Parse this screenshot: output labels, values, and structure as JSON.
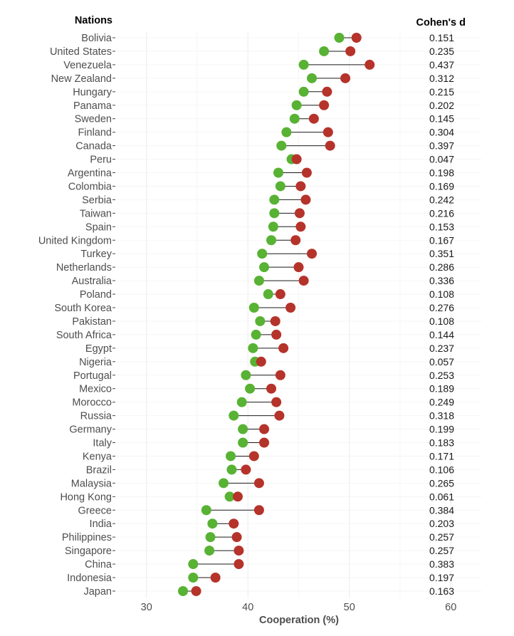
{
  "chart_data": {
    "type": "dumbbell",
    "y_header": "Nations",
    "right_header": "Cohen's d",
    "xlabel": "Cooperation (%)",
    "xlim": [
      27,
      63
    ],
    "x_ticks": [
      30,
      40,
      50,
      60
    ],
    "grid": true,
    "colors": {
      "green": "#58b233",
      "red": "#b5332a",
      "segment": "#1a1a1a"
    },
    "rows": [
      {
        "nation": "Bolivia",
        "green": 49.0,
        "red": 50.7,
        "d": "0.151"
      },
      {
        "nation": "United States",
        "green": 47.5,
        "red": 50.1,
        "d": "0.235"
      },
      {
        "nation": "Venezuela",
        "green": 45.5,
        "red": 52.0,
        "d": "0.437"
      },
      {
        "nation": "New Zealand",
        "green": 46.3,
        "red": 49.6,
        "d": "0.312"
      },
      {
        "nation": "Hungary",
        "green": 45.5,
        "red": 47.8,
        "d": "0.215"
      },
      {
        "nation": "Panama",
        "green": 44.8,
        "red": 47.5,
        "d": "0.202"
      },
      {
        "nation": "Sweden",
        "green": 44.6,
        "red": 46.5,
        "d": "0.145"
      },
      {
        "nation": "Finland",
        "green": 43.8,
        "red": 47.9,
        "d": "0.304"
      },
      {
        "nation": "Canada",
        "green": 43.3,
        "red": 48.1,
        "d": "0.397"
      },
      {
        "nation": "Peru",
        "green": 44.3,
        "red": 44.8,
        "d": "0.047"
      },
      {
        "nation": "Argentina",
        "green": 43.0,
        "red": 45.8,
        "d": "0.198"
      },
      {
        "nation": "Colombia",
        "green": 43.2,
        "red": 45.2,
        "d": "0.169"
      },
      {
        "nation": "Serbia",
        "green": 42.6,
        "red": 45.7,
        "d": "0.242"
      },
      {
        "nation": "Taiwan",
        "green": 42.6,
        "red": 45.1,
        "d": "0.216"
      },
      {
        "nation": "Spain",
        "green": 42.5,
        "red": 45.2,
        "d": "0.153"
      },
      {
        "nation": "United Kingdom",
        "green": 42.3,
        "red": 44.7,
        "d": "0.167"
      },
      {
        "nation": "Turkey",
        "green": 41.4,
        "red": 46.3,
        "d": "0.351"
      },
      {
        "nation": "Netherlands",
        "green": 41.6,
        "red": 45.0,
        "d": "0.286"
      },
      {
        "nation": "Australia",
        "green": 41.1,
        "red": 45.5,
        "d": "0.336"
      },
      {
        "nation": "Poland",
        "green": 42.0,
        "red": 43.2,
        "d": "0.108"
      },
      {
        "nation": "South Korea",
        "green": 40.6,
        "red": 44.2,
        "d": "0.276"
      },
      {
        "nation": "Pakistan",
        "green": 41.2,
        "red": 42.7,
        "d": "0.108"
      },
      {
        "nation": "South Africa",
        "green": 40.8,
        "red": 42.8,
        "d": "0.144"
      },
      {
        "nation": "Egypt",
        "green": 40.5,
        "red": 43.5,
        "d": "0.237"
      },
      {
        "nation": "Nigeria",
        "green": 40.7,
        "red": 41.3,
        "d": "0.057"
      },
      {
        "nation": "Portugal",
        "green": 39.8,
        "red": 43.2,
        "d": "0.253"
      },
      {
        "nation": "Mexico",
        "green": 40.2,
        "red": 42.3,
        "d": "0.189"
      },
      {
        "nation": "Morocco",
        "green": 39.4,
        "red": 42.8,
        "d": "0.249"
      },
      {
        "nation": "Russia",
        "green": 38.6,
        "red": 43.1,
        "d": "0.318"
      },
      {
        "nation": "Germany",
        "green": 39.5,
        "red": 41.6,
        "d": "0.199"
      },
      {
        "nation": "Italy",
        "green": 39.5,
        "red": 41.6,
        "d": "0.183"
      },
      {
        "nation": "Kenya",
        "green": 38.3,
        "red": 40.6,
        "d": "0.171"
      },
      {
        "nation": "Brazil",
        "green": 38.4,
        "red": 39.8,
        "d": "0.106"
      },
      {
        "nation": "Malaysia",
        "green": 37.6,
        "red": 41.1,
        "d": "0.265"
      },
      {
        "nation": "Hong Kong",
        "green": 38.2,
        "red": 39.0,
        "d": "0.061"
      },
      {
        "nation": "Greece",
        "green": 35.9,
        "red": 41.1,
        "d": "0.384"
      },
      {
        "nation": "India",
        "green": 36.5,
        "red": 38.6,
        "d": "0.203"
      },
      {
        "nation": "Philippines",
        "green": 36.3,
        "red": 38.9,
        "d": "0.257"
      },
      {
        "nation": "Singapore",
        "green": 36.2,
        "red": 39.1,
        "d": "0.257"
      },
      {
        "nation": "China",
        "green": 34.6,
        "red": 39.1,
        "d": "0.383"
      },
      {
        "nation": "Indonesia",
        "green": 34.6,
        "red": 36.8,
        "d": "0.197"
      },
      {
        "nation": "Japan",
        "green": 33.6,
        "red": 34.9,
        "d": "0.163"
      }
    ]
  }
}
